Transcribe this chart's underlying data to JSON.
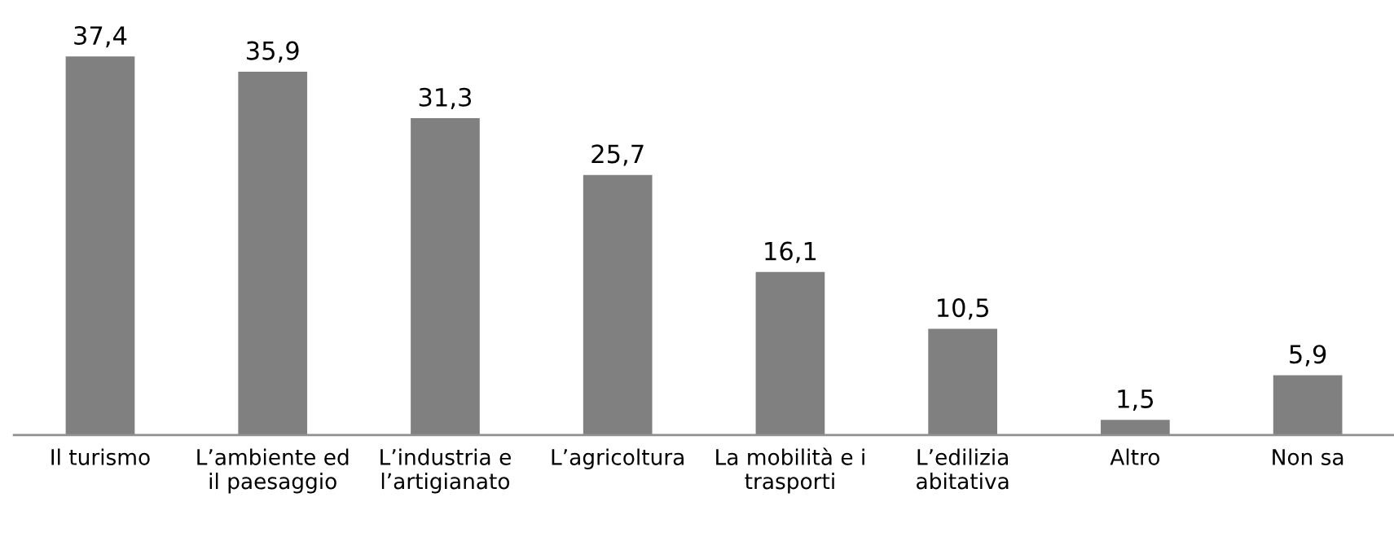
{
  "chart_data": {
    "type": "bar",
    "categories": [
      "Il turismo",
      "L’ambiente ed\nil paesaggio",
      "L’industria e\nl’artigianato",
      "L’agricoltura",
      "La mobilità e i\ntrasporti",
      "L’edilizia\nabitativa",
      "Altro",
      "Non sa"
    ],
    "values": [
      37.4,
      35.9,
      31.3,
      25.7,
      16.1,
      10.5,
      1.5,
      5.9
    ],
    "color": "#808080",
    "value_labels": [
      "37,4",
      "35,9",
      "31,3",
      "25,7",
      "16,1",
      "10,5",
      "1,5",
      "5,9"
    ],
    "grid": false,
    "legend": false
  }
}
